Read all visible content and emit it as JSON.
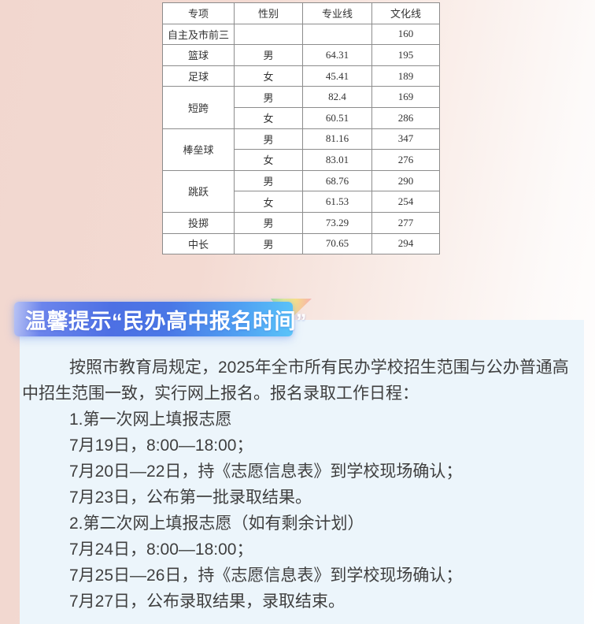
{
  "table": {
    "headers": [
      "专项",
      "性别",
      "专业线",
      "文化线"
    ],
    "rows": [
      [
        "自主及市前三",
        "",
        "",
        "160"
      ],
      [
        "篮球",
        "男",
        "64.31",
        "195"
      ],
      [
        "足球",
        "女",
        "45.41",
        "189"
      ],
      [
        "短跨",
        "男",
        "82.4",
        "169"
      ],
      [
        "女",
        "60.51",
        "286"
      ],
      [
        "棒垒球",
        "男",
        "81.16",
        "347"
      ],
      [
        "女",
        "83.01",
        "276"
      ],
      [
        "跳跃",
        "男",
        "68.76",
        "290"
      ],
      [
        "女",
        "61.53",
        "254"
      ],
      [
        "投掷",
        "男",
        "73.29",
        "277"
      ],
      [
        "中长",
        "男",
        "70.65",
        "294"
      ]
    ]
  },
  "banner": {
    "title": "温馨提示“民办高中报名时间”"
  },
  "content": {
    "lines": [
      "按照市教育局规定，2025年全市所有民办学校招生范围与公办普通高",
      "中招生范围一致，实行网上报名。报名录取工作日程：",
      "1.第一次网上填报志愿",
      "7月19日，8:00—18:00；",
      "7月20日—22日，持《志愿信息表》到学校现场确认；",
      "7月23日，公布第一批录取结果。",
      "2.第二次网上填报志愿（如有剩余计划）",
      "7月24日，8:00—18:00；",
      "7月25日—26日，持《志愿信息表》到学校现场确认；",
      "7月27日，公布录取结果，录取结束。"
    ]
  },
  "colors": {
    "page_pink": "#f2d7cf",
    "panel_blue": "#ecf5fb",
    "banner_blue_left": "#6b84ec",
    "banner_blue_mid": "#4a77e6",
    "banner_blue_right": "#5ac4f9",
    "banner_text": "#ffffff",
    "body_text": "#3f3f3f",
    "table_border": "#8c8c8c"
  }
}
